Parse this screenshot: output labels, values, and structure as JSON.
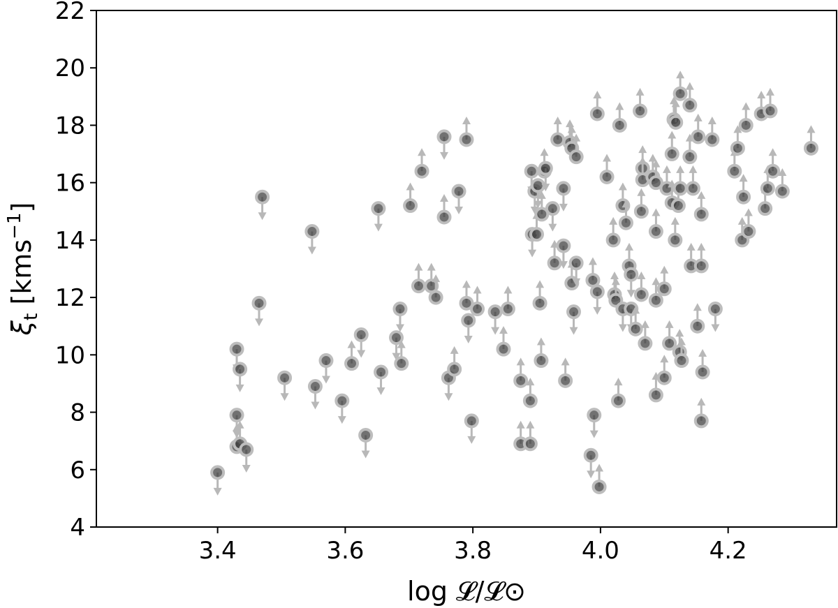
{
  "chart_data": {
    "type": "scatter",
    "xlabel": "log 𝓛/𝓛⊙",
    "ylabel_main": "ξ",
    "ylabel_sub": "t",
    "ylabel_rest": " [kms",
    "ylabel_sup": "−1",
    "ylabel_close": "]",
    "xlim": [
      3.21,
      4.37
    ],
    "ylim": [
      4,
      22
    ],
    "xticks": [
      3.4,
      3.6,
      3.8,
      4.0,
      4.2
    ],
    "xtick_labels": [
      "3.4",
      "3.6",
      "3.8",
      "4.0",
      "4.2"
    ],
    "yticks": [
      4,
      6,
      8,
      10,
      12,
      14,
      16,
      18,
      20,
      22
    ],
    "ytick_labels": [
      "4",
      "6",
      "8",
      "10",
      "12",
      "14",
      "16",
      "18",
      "20",
      "22"
    ],
    "grid": false,
    "marker_color": "#3a3a3a",
    "arrow_color": "#b8b8b8",
    "point_fields": [
      "x",
      "y",
      "limit"
    ],
    "points": [
      [
        3.4,
        5.9,
        "down"
      ],
      [
        3.43,
        7.9,
        "down"
      ],
      [
        3.43,
        6.8,
        "up"
      ],
      [
        3.435,
        6.9,
        "up"
      ],
      [
        3.445,
        6.7,
        "down"
      ],
      [
        3.43,
        10.2,
        "down"
      ],
      [
        3.435,
        9.5,
        "down"
      ],
      [
        3.465,
        11.8,
        "down"
      ],
      [
        3.47,
        15.5,
        "down"
      ],
      [
        3.505,
        9.2,
        "down"
      ],
      [
        3.548,
        14.3,
        "down"
      ],
      [
        3.553,
        8.9,
        "down"
      ],
      [
        3.57,
        9.8,
        "down"
      ],
      [
        3.595,
        8.4,
        "down"
      ],
      [
        3.61,
        9.7,
        "up"
      ],
      [
        3.625,
        10.7,
        "down"
      ],
      [
        3.632,
        7.2,
        "down"
      ],
      [
        3.652,
        15.1,
        "down"
      ],
      [
        3.656,
        9.4,
        "down"
      ],
      [
        3.68,
        10.6,
        "down"
      ],
      [
        3.686,
        11.6,
        "down"
      ],
      [
        3.688,
        9.7,
        "up"
      ],
      [
        3.702,
        15.2,
        "up"
      ],
      [
        3.715,
        12.4,
        "up"
      ],
      [
        3.72,
        16.4,
        "up"
      ],
      [
        3.735,
        12.4,
        "up"
      ],
      [
        3.742,
        12.0,
        "up"
      ],
      [
        3.755,
        17.6,
        "down"
      ],
      [
        3.755,
        14.8,
        "up"
      ],
      [
        3.762,
        9.2,
        "down"
      ],
      [
        3.771,
        9.5,
        "up"
      ],
      [
        3.778,
        15.7,
        "down"
      ],
      [
        3.79,
        17.5,
        "up"
      ],
      [
        3.79,
        11.8,
        "up"
      ],
      [
        3.793,
        11.2,
        "down"
      ],
      [
        3.798,
        7.7,
        "down"
      ],
      [
        3.807,
        11.6,
        "up"
      ],
      [
        3.835,
        11.5,
        "down"
      ],
      [
        3.848,
        10.2,
        "up"
      ],
      [
        3.855,
        11.6,
        "up"
      ],
      [
        3.875,
        9.1,
        "up"
      ],
      [
        3.875,
        6.9,
        "up"
      ],
      [
        3.89,
        6.9,
        "up"
      ],
      [
        3.89,
        8.4,
        "up"
      ],
      [
        3.892,
        16.4,
        "down"
      ],
      [
        3.893,
        14.2,
        "down"
      ],
      [
        3.897,
        15.7,
        "down"
      ],
      [
        3.9,
        14.2,
        "up"
      ],
      [
        3.902,
        15.9,
        "down"
      ],
      [
        3.905,
        11.8,
        "up"
      ],
      [
        3.907,
        9.8,
        "up"
      ],
      [
        3.908,
        14.9,
        "up"
      ],
      [
        3.912,
        16.4,
        "up"
      ],
      [
        3.914,
        16.5,
        "down"
      ],
      [
        3.925,
        15.1,
        "down"
      ],
      [
        3.928,
        13.2,
        "up"
      ],
      [
        3.933,
        17.5,
        "up"
      ],
      [
        3.942,
        15.8,
        "down"
      ],
      [
        3.942,
        13.8,
        "down"
      ],
      [
        3.945,
        9.1,
        "up"
      ],
      [
        3.952,
        17.4,
        "up"
      ],
      [
        3.955,
        17.2,
        "up"
      ],
      [
        3.955,
        12.5,
        "up"
      ],
      [
        3.958,
        11.5,
        "down"
      ],
      [
        3.962,
        13.2,
        "down"
      ],
      [
        3.962,
        16.9,
        "up"
      ],
      [
        3.985,
        6.5,
        "down"
      ],
      [
        3.988,
        12.6,
        "up"
      ],
      [
        3.99,
        7.9,
        "down"
      ],
      [
        3.995,
        18.4,
        "up"
      ],
      [
        3.995,
        12.2,
        "down"
      ],
      [
        3.998,
        5.4,
        "up"
      ],
      [
        4.01,
        16.2,
        "up"
      ],
      [
        4.02,
        14.0,
        "up"
      ],
      [
        4.022,
        12.1,
        "up"
      ],
      [
        4.024,
        11.9,
        "up"
      ],
      [
        4.028,
        8.4,
        "up"
      ],
      [
        4.03,
        18.0,
        "up"
      ],
      [
        4.035,
        15.2,
        "up"
      ],
      [
        4.035,
        11.6,
        "down"
      ],
      [
        4.04,
        14.6,
        "up"
      ],
      [
        4.045,
        13.1,
        "up"
      ],
      [
        4.048,
        12.8,
        "down"
      ],
      [
        4.048,
        11.6,
        "down"
      ],
      [
        4.055,
        10.9,
        "up"
      ],
      [
        4.062,
        18.5,
        "up"
      ],
      [
        4.064,
        15.0,
        "up"
      ],
      [
        4.064,
        12.1,
        "up"
      ],
      [
        4.066,
        16.5,
        "up"
      ],
      [
        4.066,
        16.1,
        "up"
      ],
      [
        4.07,
        10.4,
        "up"
      ],
      [
        4.082,
        16.2,
        "up"
      ],
      [
        4.087,
        16.0,
        "up"
      ],
      [
        4.087,
        14.3,
        "up"
      ],
      [
        4.087,
        11.9,
        "up"
      ],
      [
        4.087,
        8.6,
        "up"
      ],
      [
        4.1,
        12.3,
        "up"
      ],
      [
        4.1,
        9.2,
        "up"
      ],
      [
        4.104,
        15.8,
        "up"
      ],
      [
        4.108,
        10.4,
        "up"
      ],
      [
        4.112,
        17.0,
        "up"
      ],
      [
        4.112,
        15.3,
        "up"
      ],
      [
        4.115,
        18.2,
        "up"
      ],
      [
        4.117,
        14.0,
        "up"
      ],
      [
        4.118,
        18.1,
        "up"
      ],
      [
        4.122,
        15.2,
        "up"
      ],
      [
        4.124,
        10.1,
        "up"
      ],
      [
        4.125,
        19.1,
        "up"
      ],
      [
        4.125,
        15.8,
        "up"
      ],
      [
        4.127,
        9.8,
        "up"
      ],
      [
        4.14,
        18.7,
        "up"
      ],
      [
        4.14,
        16.9,
        "up"
      ],
      [
        4.142,
        13.1,
        "up"
      ],
      [
        4.145,
        15.8,
        "up"
      ],
      [
        4.152,
        11.0,
        "up"
      ],
      [
        4.153,
        17.6,
        "up"
      ],
      [
        4.158,
        13.1,
        "up"
      ],
      [
        4.158,
        14.9,
        "up"
      ],
      [
        4.158,
        7.7,
        "up"
      ],
      [
        4.16,
        9.4,
        "up"
      ],
      [
        4.175,
        17.5,
        "up"
      ],
      [
        4.18,
        11.6,
        "down"
      ],
      [
        4.21,
        16.4,
        "up"
      ],
      [
        4.215,
        17.2,
        "up"
      ],
      [
        4.222,
        14.0,
        "up"
      ],
      [
        4.224,
        15.5,
        "up"
      ],
      [
        4.228,
        18.0,
        "up"
      ],
      [
        4.232,
        14.3,
        "up"
      ],
      [
        4.252,
        18.4,
        "up"
      ],
      [
        4.258,
        15.1,
        "up"
      ],
      [
        4.262,
        15.8,
        "up"
      ],
      [
        4.266,
        18.5,
        "up"
      ],
      [
        4.27,
        16.4,
        "up"
      ],
      [
        4.285,
        15.7,
        "up"
      ],
      [
        4.33,
        17.2,
        "up"
      ]
    ]
  }
}
